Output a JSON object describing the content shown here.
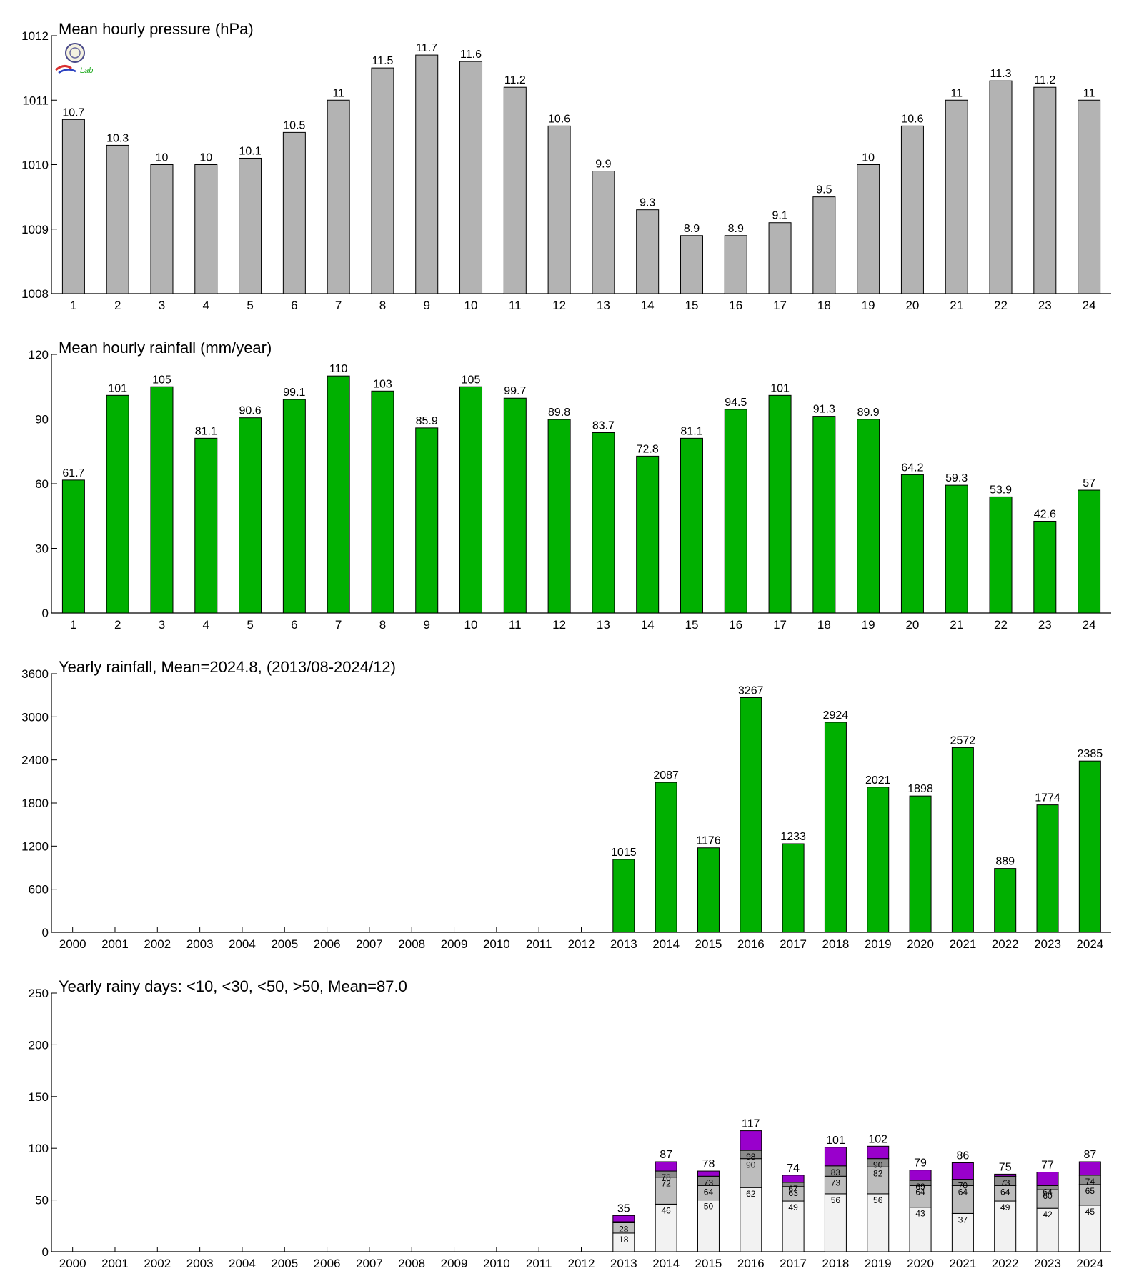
{
  "colors": {
    "pressure": "#b3b3b3",
    "rain": "#00b000",
    "seg1": "#f2f2f2",
    "seg2": "#bdbdbd",
    "seg3": "#8c8c8c",
    "seg4": "#9900cc"
  },
  "logo": {
    "text": "Lab",
    "icon": "seal-logo-icon"
  },
  "chart_data": [
    {
      "type": "bar",
      "title": "Mean hourly pressure (hPa)",
      "categories": [
        "1",
        "2",
        "3",
        "4",
        "5",
        "6",
        "7",
        "8",
        "9",
        "10",
        "11",
        "12",
        "13",
        "14",
        "15",
        "16",
        "17",
        "18",
        "19",
        "20",
        "21",
        "22",
        "23",
        "24"
      ],
      "values": [
        1010.7,
        1010.3,
        1010.0,
        1010.0,
        1010.1,
        1010.5,
        1011.0,
        1011.5,
        1011.7,
        1011.6,
        1011.2,
        1010.6,
        1009.9,
        1009.3,
        1008.9,
        1008.9,
        1009.1,
        1009.5,
        1010.0,
        1010.6,
        1011.0,
        1011.3,
        1011.2,
        1011.0
      ],
      "labels": [
        "10.7",
        "10.3",
        "10",
        "10",
        "10.1",
        "10.5",
        "11",
        "11.5",
        "11.7",
        "11.6",
        "11.2",
        "10.6",
        "9.9",
        "9.3",
        "8.9",
        "8.9",
        "9.1",
        "9.5",
        "10",
        "10.6",
        "11",
        "11.3",
        "11.2",
        "11"
      ],
      "ylim": [
        1008,
        1012
      ],
      "yticks": [
        "1008",
        "1009",
        "1010",
        "1011",
        "1012"
      ],
      "color": "#b3b3b3"
    },
    {
      "type": "bar",
      "title": "Mean hourly rainfall (mm/year)",
      "categories": [
        "1",
        "2",
        "3",
        "4",
        "5",
        "6",
        "7",
        "8",
        "9",
        "10",
        "11",
        "12",
        "13",
        "14",
        "15",
        "16",
        "17",
        "18",
        "19",
        "20",
        "21",
        "22",
        "23",
        "24"
      ],
      "values": [
        61.7,
        101,
        105,
        81.1,
        90.6,
        99.1,
        110,
        103,
        85.9,
        105,
        99.7,
        89.8,
        83.7,
        72.8,
        81.1,
        94.5,
        101,
        91.3,
        89.9,
        64.2,
        59.3,
        53.9,
        42.6,
        57
      ],
      "labels": [
        "61.7",
        "101",
        "105",
        "81.1",
        "90.6",
        "99.1",
        "110",
        "103",
        "85.9",
        "105",
        "99.7",
        "89.8",
        "83.7",
        "72.8",
        "81.1",
        "94.5",
        "101",
        "91.3",
        "89.9",
        "64.2",
        "59.3",
        "53.9",
        "42.6",
        "57"
      ],
      "ylim": [
        0,
        120
      ],
      "yticks": [
        "0",
        "30",
        "60",
        "90",
        "120"
      ],
      "color": "#00b000"
    },
    {
      "type": "bar",
      "title": "Yearly rainfall, Mean=2024.8, (2013/08-2024/12)",
      "categories": [
        "2000",
        "2001",
        "2002",
        "2003",
        "2004",
        "2005",
        "2006",
        "2007",
        "2008",
        "2009",
        "2010",
        "2011",
        "2012",
        "2013",
        "2014",
        "2015",
        "2016",
        "2017",
        "2018",
        "2019",
        "2020",
        "2021",
        "2022",
        "2023",
        "2024"
      ],
      "values": [
        null,
        null,
        null,
        null,
        null,
        null,
        null,
        null,
        null,
        null,
        null,
        null,
        null,
        1015,
        2087,
        1176,
        3267,
        1233,
        2924,
        2021,
        1898,
        2572,
        889,
        1774,
        2385
      ],
      "labels": [
        "",
        "",
        "",
        "",
        "",
        "",
        "",
        "",
        "",
        "",
        "",
        "",
        "",
        "1015",
        "2087",
        "1176",
        "3267",
        "1233",
        "2924",
        "2021",
        "1898",
        "2572",
        "889",
        "1774",
        "2385"
      ],
      "ylim": [
        0,
        3600
      ],
      "yticks": [
        "0",
        "600",
        "1200",
        "1800",
        "2400",
        "3000",
        "3600"
      ],
      "color": "#00b000"
    },
    {
      "type": "stacked-bar",
      "title": "Yearly rainy days: <10, <30, <50, >50, Mean=87.0",
      "categories": [
        "2000",
        "2001",
        "2002",
        "2003",
        "2004",
        "2005",
        "2006",
        "2007",
        "2008",
        "2009",
        "2010",
        "2011",
        "2012",
        "2013",
        "2014",
        "2015",
        "2016",
        "2017",
        "2018",
        "2019",
        "2020",
        "2021",
        "2022",
        "2023",
        "2024"
      ],
      "cumulative": [
        null,
        null,
        null,
        null,
        null,
        null,
        null,
        null,
        null,
        null,
        null,
        null,
        null,
        [
          18,
          28,
          29,
          35
        ],
        [
          46,
          72,
          78,
          87
        ],
        [
          50,
          64,
          73,
          78
        ],
        [
          62,
          90,
          98,
          117
        ],
        [
          49,
          63,
          67,
          74
        ],
        [
          56,
          73,
          83,
          101
        ],
        [
          56,
          82,
          90,
          102
        ],
        [
          43,
          64,
          69,
          79
        ],
        [
          37,
          64,
          70,
          86
        ],
        [
          49,
          64,
          73,
          75
        ],
        [
          42,
          60,
          64,
          77
        ],
        [
          45,
          65,
          74,
          87
        ]
      ],
      "segment_labels": [
        null,
        null,
        null,
        null,
        null,
        null,
        null,
        null,
        null,
        null,
        null,
        null,
        null,
        [
          "18",
          "28",
          "",
          ""
        ],
        [
          "46",
          "72",
          "78",
          ""
        ],
        [
          "50",
          "64",
          "73",
          ""
        ],
        [
          "62",
          "90",
          "98",
          ""
        ],
        [
          "49",
          "63",
          "67",
          ""
        ],
        [
          "56",
          "73",
          "83",
          ""
        ],
        [
          "56",
          "82",
          "90",
          ""
        ],
        [
          "43",
          "64",
          "69",
          ""
        ],
        [
          "37",
          "64",
          "70",
          ""
        ],
        [
          "49",
          "64",
          "73",
          ""
        ],
        [
          "42",
          "60",
          "64",
          ""
        ],
        [
          "45",
          "65",
          "74",
          ""
        ]
      ],
      "totals": [
        "",
        "",
        "",
        "",
        "",
        "",
        "",
        "",
        "",
        "",
        "",
        "",
        "",
        "35",
        "87",
        "78",
        "117",
        "74",
        "101",
        "102",
        "79",
        "86",
        "75",
        "77",
        "87"
      ],
      "ylim": [
        0,
        250
      ],
      "yticks": [
        "0",
        "50",
        "100",
        "150",
        "200",
        "250"
      ]
    }
  ]
}
